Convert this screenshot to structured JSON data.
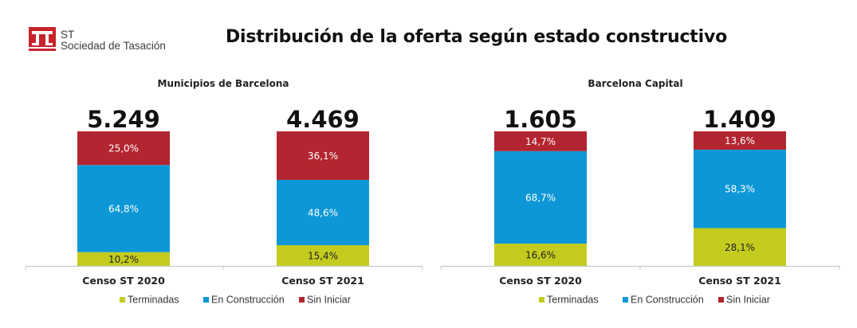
{
  "logo": {
    "line1": "ST",
    "line2": "Sociedad de Tasación",
    "color": "#c8242b"
  },
  "title": "Distribución de la oferta según estado constructivo",
  "colors": {
    "Terminadas": "#c3cc1e",
    "En Construcción": "#0e97d6",
    "Sin Iniciar": "#b32530"
  },
  "chart_data": [
    {
      "type": "bar",
      "stacked": true,
      "title": "Municipios de Barcelona",
      "categories": [
        "Censo ST 2020",
        "Censo ST 2021"
      ],
      "totals": [
        "5.249",
        "4.469"
      ],
      "series": [
        {
          "name": "Terminadas",
          "values": [
            10.2,
            15.4
          ],
          "labels": [
            "10,2%",
            "15,4%"
          ]
        },
        {
          "name": "En Construcción",
          "values": [
            64.8,
            48.6
          ],
          "labels": [
            "64,8%",
            "48,6%"
          ]
        },
        {
          "name": "Sin Iniciar",
          "values": [
            25.0,
            36.1
          ],
          "labels": [
            "25,0%",
            "36,1%"
          ]
        }
      ],
      "ylim": [
        0,
        100
      ],
      "legend": "bottom",
      "grid": false
    },
    {
      "type": "bar",
      "stacked": true,
      "title": "Barcelona Capital",
      "categories": [
        "Censo ST 2020",
        "Censo ST 2021"
      ],
      "totals": [
        "1.605",
        "1.409"
      ],
      "series": [
        {
          "name": "Terminadas",
          "values": [
            16.6,
            28.1
          ],
          "labels": [
            "16,6%",
            "28,1%"
          ]
        },
        {
          "name": "En Construcción",
          "values": [
            68.7,
            58.3
          ],
          "labels": [
            "68,7%",
            "58,3%"
          ]
        },
        {
          "name": "Sin Iniciar",
          "values": [
            14.7,
            13.6
          ],
          "labels": [
            "14,7%",
            "13,6%"
          ]
        }
      ],
      "ylim": [
        0,
        100
      ],
      "legend": "bottom",
      "grid": false
    }
  ]
}
